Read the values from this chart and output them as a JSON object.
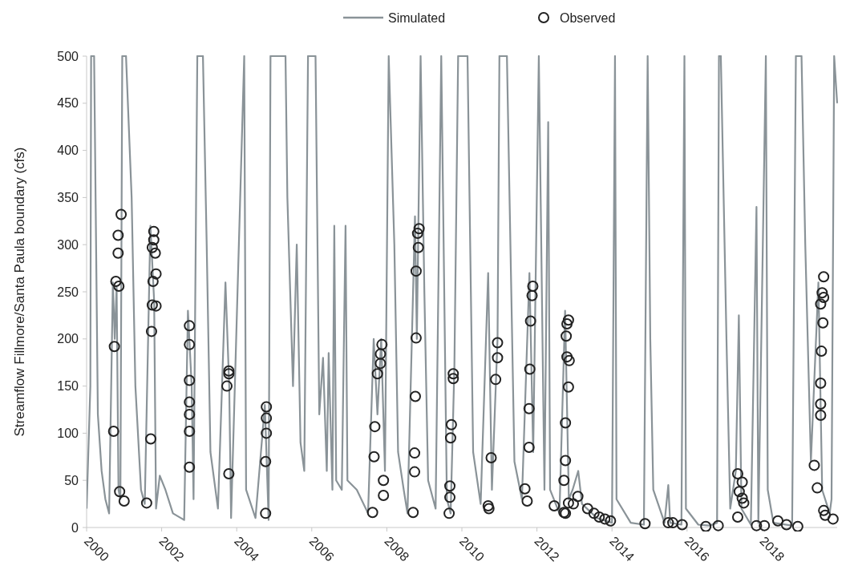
{
  "chart_data": {
    "type": "line",
    "ylabel": "Streamflow Fillmore/Santa Paula boundary (cfs)",
    "xlim": [
      2000,
      2020
    ],
    "xticks": [
      2000,
      2002,
      2004,
      2006,
      2008,
      2010,
      2012,
      2014,
      2016,
      2018
    ],
    "ylim": [
      0,
      500
    ],
    "yticks": [
      0,
      50,
      100,
      150,
      200,
      250,
      300,
      350,
      400,
      450,
      500
    ],
    "legend": "top",
    "grid": false,
    "series": [
      {
        "name": "Simulated",
        "type": "line",
        "color": "#8a9398",
        "line_style": "solid",
        "x": [
          2000.0,
          2000.1,
          2000.12,
          2000.2,
          2000.3,
          2000.4,
          2000.5,
          2000.6,
          2000.7,
          2000.75,
          2000.8,
          2000.85,
          2000.9,
          2000.95,
          2001.05,
          2001.2,
          2001.3,
          2001.45,
          2001.55,
          2001.7,
          2001.8,
          2001.85,
          2001.95,
          2002.1,
          2002.3,
          2002.6,
          2002.7,
          2002.8,
          2002.85,
          2002.95,
          2003.1,
          2003.2,
          2003.3,
          2003.5,
          2003.7,
          2003.8,
          2003.85,
          2004.2,
          2004.25,
          2004.5,
          2004.75,
          2004.85,
          2004.9,
          2005.3,
          2005.35,
          2005.5,
          2005.6,
          2005.7,
          2005.8,
          2005.9,
          2006.1,
          2006.2,
          2006.3,
          2006.4,
          2006.45,
          2006.55,
          2006.6,
          2006.65,
          2006.8,
          2006.9,
          2006.95,
          2007.2,
          2007.5,
          2007.65,
          2007.75,
          2007.85,
          2007.95,
          2008.05,
          2008.2,
          2008.3,
          2008.45,
          2008.55,
          2008.75,
          2008.8,
          2008.9,
          2009.0,
          2009.1,
          2009.3,
          2009.45,
          2009.6,
          2009.7,
          2009.8,
          2009.9,
          2010.15,
          2010.3,
          2010.5,
          2010.7,
          2010.8,
          2010.95,
          2011.0,
          2011.2,
          2011.4,
          2011.6,
          2011.8,
          2011.9,
          2012.05,
          2012.2,
          2012.3,
          2012.35,
          2012.6,
          2012.75,
          2012.85,
          2012.95,
          2013.1,
          2013.2,
          2013.6,
          2014.0,
          2014.08,
          2014.12,
          2014.5,
          2014.85,
          2014.95,
          2015.02,
          2015.1,
          2015.4,
          2015.5,
          2015.55,
          2015.85,
          2015.93,
          2015.97,
          2016.3,
          2016.6,
          2016.8,
          2016.85,
          2016.9,
          2017.05,
          2017.15,
          2017.3,
          2017.38,
          2017.45,
          2017.7,
          2017.85,
          2017.9,
          2018.1,
          2018.15,
          2018.3,
          2018.8,
          2018.9,
          2019.05,
          2019.15,
          2019.3,
          2019.5,
          2019.6,
          2019.8,
          2019.85,
          2019.92,
          2020.0
        ],
        "values": [
          20,
          150,
          500,
          500,
          120,
          60,
          30,
          15,
          260,
          200,
          255,
          40,
          30,
          500,
          500,
          350,
          150,
          40,
          25,
          320,
          240,
          20,
          55,
          40,
          15,
          8,
          230,
          150,
          30,
          500,
          500,
          300,
          80,
          20,
          260,
          150,
          10,
          500,
          40,
          10,
          130,
          8,
          500,
          500,
          350,
          150,
          300,
          90,
          60,
          500,
          500,
          120,
          180,
          60,
          185,
          40,
          320,
          50,
          40,
          320,
          50,
          40,
          15,
          200,
          120,
          200,
          60,
          500,
          300,
          80,
          40,
          15,
          330,
          200,
          500,
          250,
          50,
          20,
          500,
          30,
          15,
          170,
          500,
          500,
          80,
          25,
          270,
          40,
          200,
          500,
          500,
          70,
          30,
          270,
          80,
          500,
          40,
          430,
          40,
          15,
          230,
          30,
          40,
          60,
          25,
          10,
          5,
          500,
          30,
          5,
          3,
          500,
          200,
          40,
          5,
          45,
          5,
          3,
          500,
          20,
          3,
          2,
          5,
          500,
          500,
          200,
          20,
          60,
          225,
          20,
          3,
          340,
          5,
          500,
          40,
          5,
          2,
          500,
          500,
          300,
          70,
          260,
          40,
          15,
          30,
          500,
          450
        ]
      },
      {
        "name": "Observed",
        "type": "scatter",
        "color": "#222222",
        "marker": "circle",
        "x": [
          2000.92,
          2000.84,
          2000.84,
          2000.78,
          2000.86,
          2000.74,
          2000.72,
          2000.88,
          2001.0,
          2001.79,
          2001.79,
          2001.75,
          2001.83,
          2001.85,
          2001.77,
          2001.75,
          2001.85,
          2001.73,
          2001.71,
          2001.6,
          2002.74,
          2002.74,
          2002.74,
          2002.74,
          2002.74,
          2002.74,
          2002.74,
          2003.79,
          2003.79,
          2003.74,
          2003.79,
          2004.79,
          2004.79,
          2004.79,
          2004.77,
          2004.77,
          2007.87,
          2007.83,
          2007.83,
          2007.75,
          2007.68,
          2007.66,
          2007.91,
          2007.91,
          2007.62,
          2008.86,
          2008.82,
          2008.84,
          2008.78,
          2008.78,
          2008.76,
          2008.74,
          2008.74,
          2008.7,
          2009.77,
          2009.77,
          2009.72,
          2009.7,
          2009.68,
          2009.68,
          2009.66,
          2010.95,
          2010.95,
          2010.9,
          2010.78,
          2010.7,
          2010.72,
          2011.89,
          2011.87,
          2011.83,
          2011.81,
          2011.79,
          2011.79,
          2011.68,
          2011.74,
          2012.84,
          2012.8,
          2012.78,
          2012.8,
          2012.86,
          2012.84,
          2012.76,
          2012.76,
          2012.72,
          2012.84,
          2012.72,
          2012.76,
          2012.46,
          2013.09,
          2012.97,
          2013.35,
          2013.52,
          2013.66,
          2013.81,
          2013.96,
          2014.88,
          2015.5,
          2015.62,
          2015.87,
          2016.5,
          2016.83,
          2017.35,
          2017.47,
          2017.39,
          2017.47,
          2017.51,
          2017.35,
          2017.85,
          2018.06,
          2018.42,
          2018.65,
          2018.95,
          2019.64,
          2019.6,
          2019.64,
          2019.56,
          2019.62,
          2019.58,
          2019.56,
          2019.56,
          2019.56,
          2019.39,
          2019.47,
          2019.64,
          2019.68,
          2019.89
        ],
        "values": [
          332,
          310,
          291,
          261,
          256,
          192,
          102,
          38,
          28,
          314,
          305,
          297,
          291,
          269,
          261,
          236,
          235,
          208,
          94,
          26,
          214,
          194,
          156,
          133,
          120,
          102,
          64,
          166,
          163,
          150,
          57,
          128,
          116,
          100,
          70,
          15,
          194,
          184,
          174,
          163,
          107,
          75,
          50,
          34,
          16,
          317,
          312,
          297,
          272,
          201,
          139,
          79,
          59,
          16,
          163,
          158,
          109,
          95,
          44,
          32,
          15,
          196,
          180,
          157,
          74,
          23,
          20,
          256,
          246,
          219,
          168,
          126,
          85,
          41,
          28,
          220,
          216,
          203,
          181,
          177,
          149,
          111,
          71,
          50,
          26,
          16,
          15,
          23,
          33,
          25,
          20,
          15,
          11,
          9,
          7,
          4,
          5,
          5,
          3,
          1,
          2,
          57,
          48,
          38,
          31,
          26,
          11,
          2,
          2,
          7,
          3,
          1,
          266,
          249,
          244,
          237,
          217,
          187,
          153,
          131,
          119,
          66,
          42,
          18,
          13,
          9
        ]
      }
    ]
  }
}
